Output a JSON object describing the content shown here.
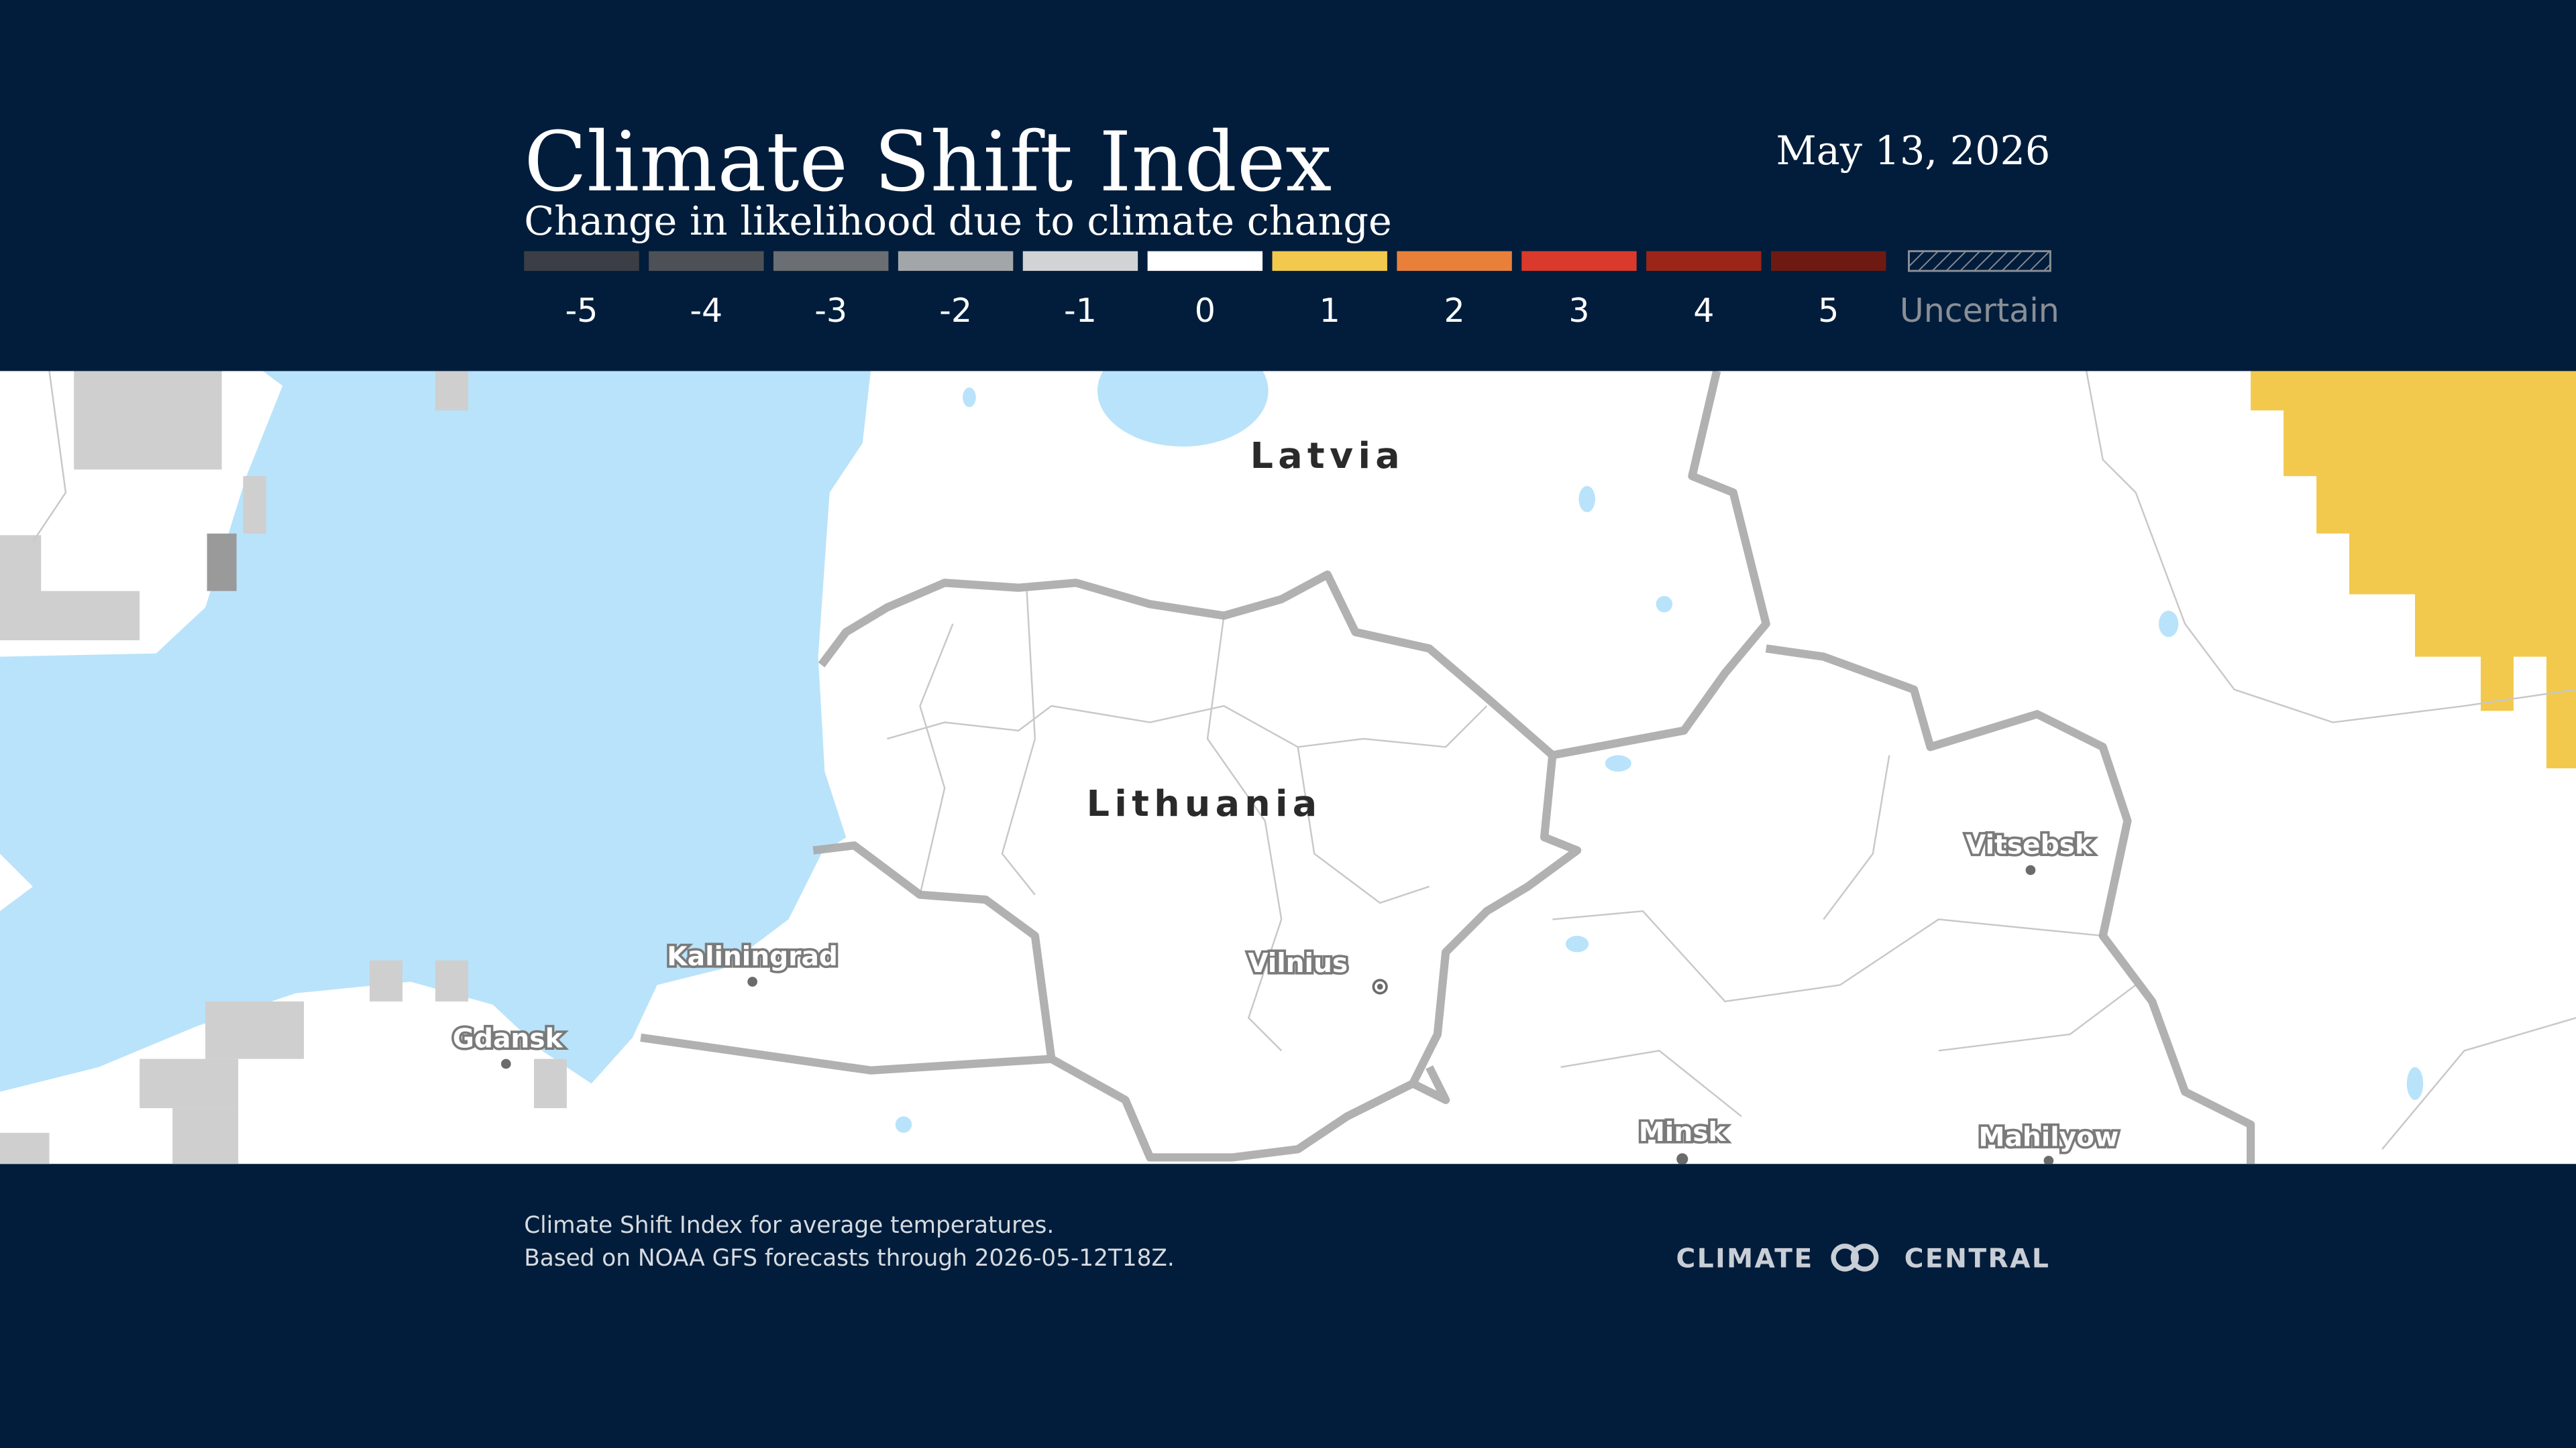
{
  "header": {
    "title": "Climate Shift Index",
    "subtitle": "Change in likelihood due to climate change",
    "date": "May 13, 2026"
  },
  "legend": [
    {
      "label": "-5",
      "color": "#3b3f45"
    },
    {
      "label": "-4",
      "color": "#4d5156"
    },
    {
      "label": "-3",
      "color": "#6b6e72"
    },
    {
      "label": "-2",
      "color": "#a3a6a9"
    },
    {
      "label": "-1",
      "color": "#d2d3d5"
    },
    {
      "label": "0",
      "color": "#ffffff"
    },
    {
      "label": "1",
      "color": "#f2c94c"
    },
    {
      "label": "2",
      "color": "#e8803a"
    },
    {
      "label": "3",
      "color": "#d93a2b"
    },
    {
      "label": "4",
      "color": "#9b2518"
    },
    {
      "label": "5",
      "color": "#6e1a12"
    },
    {
      "label": "Uncertain",
      "color": "hatch"
    }
  ],
  "map": {
    "countries": [
      "Latvia",
      "Lithuania"
    ],
    "cities": [
      "Vilnius",
      "Kaliningrad",
      "Gdansk",
      "Vitsebsk",
      "Minsk",
      "Mahilyow"
    ]
  },
  "footer": {
    "lines": [
      "Climate Shift Index for average temperatures.",
      "Based on NOAA GFS forecasts through 2026-05-12T18Z."
    ],
    "logo_left": "CLIMATE",
    "logo_right": "CENTRAL"
  }
}
